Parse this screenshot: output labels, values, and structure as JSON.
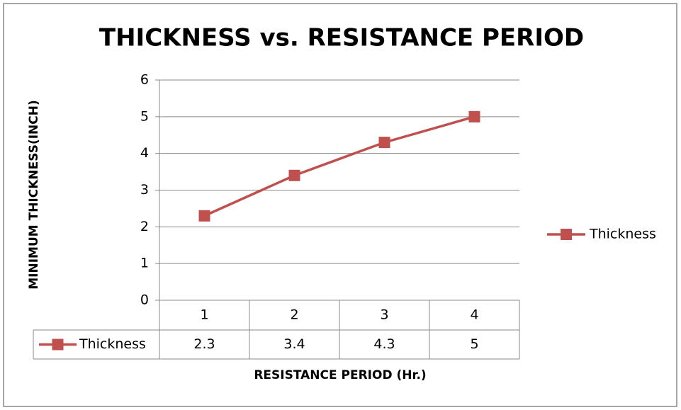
{
  "chart_data": {
    "type": "line",
    "title": "THICKNESS vs. RESISTANCE PERIOD",
    "x_label": "RESISTANCE PERIOD (Hr.)",
    "y_label": "MINIMUM THICKNESS(INCH)",
    "categories": [
      "1",
      "2",
      "3",
      "4"
    ],
    "series": [
      {
        "name": "Thickness",
        "color": "#c0504d",
        "values": [
          2.3,
          3.4,
          4.3,
          5
        ]
      }
    ],
    "ylim": [
      0,
      6
    ],
    "yticks": [
      0,
      1,
      2,
      3,
      4,
      5,
      6
    ],
    "grid": true,
    "legend": "right",
    "marker": "square",
    "data_table": true
  }
}
